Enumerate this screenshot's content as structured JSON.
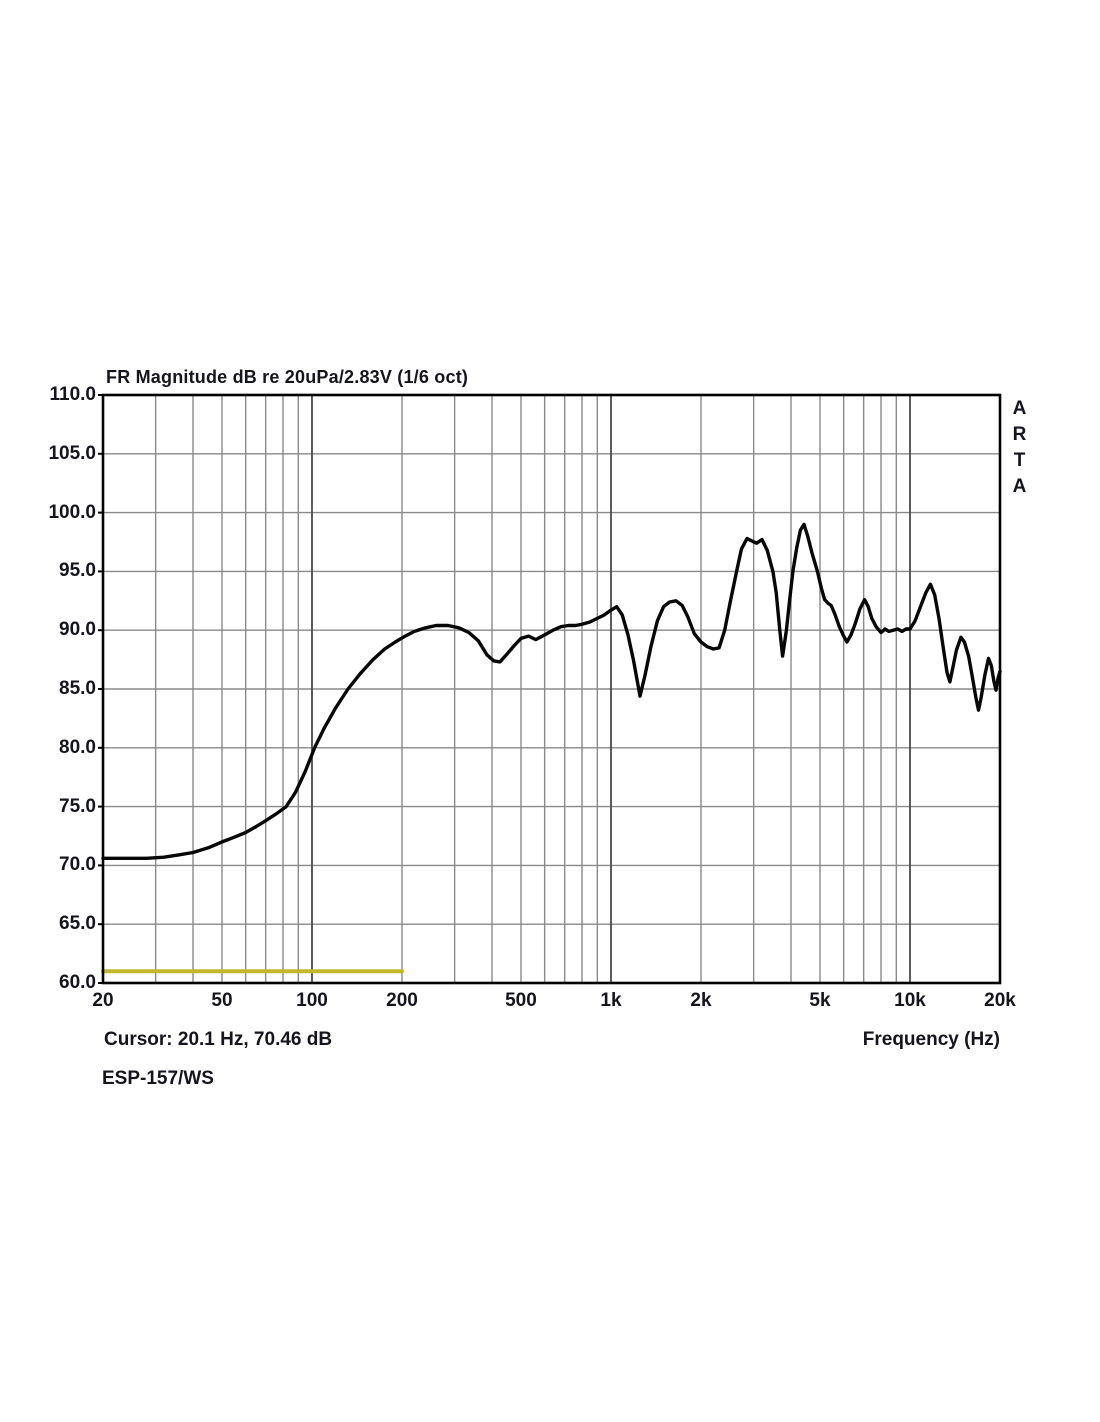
{
  "title": "FR Magnitude dB re 20uPa/2.83V (1/6 oct)",
  "watermark": "ARTA",
  "cursor_readout": "Cursor: 20.1 Hz, 70.46 dB",
  "device_label": "ESP-157/WS",
  "x_axis_label": "Frequency (Hz)",
  "colors": {
    "background": "#ffffff",
    "border": "#000000",
    "grid_minor": "#8a8a8a",
    "grid_decade": "#4a4a4a",
    "text": "#15151e",
    "fr_trace": "#070707",
    "overlay_trace": "#c1b92b"
  },
  "chart_data": {
    "type": "line",
    "title": "FR Magnitude dB re 20uPa/2.83V (1/6 oct)",
    "xlabel": "Frequency (Hz)",
    "ylabel": "",
    "x_scale": "log",
    "xlim": [
      20,
      20000
    ],
    "ylim": [
      60,
      110
    ],
    "grid": true,
    "legend_position": "none",
    "x_ticks": [
      20,
      50,
      100,
      200,
      500,
      1000,
      2000,
      5000,
      10000,
      20000
    ],
    "x_tick_labels": [
      "20",
      "50",
      "100",
      "200",
      "500",
      "1k",
      "2k",
      "5k",
      "10k",
      "20k"
    ],
    "y_ticks": [
      110,
      105,
      100,
      95,
      90,
      85,
      80,
      75,
      70,
      65,
      60
    ],
    "y_tick_labels": [
      "110.0",
      "105.0",
      "100.0",
      "95.0",
      "90.0",
      "85.0",
      "80.0",
      "75.0",
      "70.0",
      "65.0",
      "60.0"
    ],
    "grid_freqs_minor": [
      30,
      40,
      50,
      60,
      70,
      80,
      90,
      200,
      300,
      400,
      500,
      600,
      700,
      800,
      900,
      2000,
      3000,
      4000,
      5000,
      6000,
      7000,
      8000,
      9000
    ],
    "grid_freqs_decade": [
      100,
      1000,
      10000
    ],
    "series": [
      {
        "name": "fr-magnitude",
        "color": "#070707",
        "width": 3.4,
        "points": [
          [
            20,
            70.6
          ],
          [
            22,
            70.6
          ],
          [
            25,
            70.6
          ],
          [
            28,
            70.6
          ],
          [
            32,
            70.7
          ],
          [
            36,
            70.9
          ],
          [
            40,
            71.1
          ],
          [
            45,
            71.5
          ],
          [
            50,
            72.0
          ],
          [
            55,
            72.4
          ],
          [
            60,
            72.8
          ],
          [
            65,
            73.3
          ],
          [
            70,
            73.8
          ],
          [
            76,
            74.4
          ],
          [
            82,
            75.0
          ],
          [
            88,
            76.2
          ],
          [
            95,
            78.0
          ],
          [
            102,
            80.0
          ],
          [
            110,
            81.7
          ],
          [
            120,
            83.4
          ],
          [
            132,
            85.0
          ],
          [
            145,
            86.3
          ],
          [
            160,
            87.5
          ],
          [
            175,
            88.4
          ],
          [
            190,
            89.0
          ],
          [
            205,
            89.5
          ],
          [
            220,
            89.9
          ],
          [
            240,
            90.2
          ],
          [
            260,
            90.4
          ],
          [
            285,
            90.4
          ],
          [
            310,
            90.2
          ],
          [
            335,
            89.8
          ],
          [
            360,
            89.1
          ],
          [
            385,
            87.9
          ],
          [
            405,
            87.4
          ],
          [
            425,
            87.3
          ],
          [
            450,
            88.0
          ],
          [
            475,
            88.7
          ],
          [
            500,
            89.3
          ],
          [
            530,
            89.5
          ],
          [
            560,
            89.2
          ],
          [
            600,
            89.6
          ],
          [
            640,
            90.0
          ],
          [
            680,
            90.3
          ],
          [
            720,
            90.4
          ],
          [
            760,
            90.4
          ],
          [
            800,
            90.5
          ],
          [
            850,
            90.7
          ],
          [
            900,
            91.0
          ],
          [
            950,
            91.3
          ],
          [
            1000,
            91.7
          ],
          [
            1045,
            92.0
          ],
          [
            1090,
            91.3
          ],
          [
            1140,
            89.6
          ],
          [
            1190,
            87.4
          ],
          [
            1250,
            84.4
          ],
          [
            1300,
            86.2
          ],
          [
            1360,
            88.6
          ],
          [
            1430,
            90.8
          ],
          [
            1500,
            92.0
          ],
          [
            1570,
            92.4
          ],
          [
            1650,
            92.5
          ],
          [
            1730,
            92.1
          ],
          [
            1810,
            91.1
          ],
          [
            1900,
            89.7
          ],
          [
            2000,
            89.0
          ],
          [
            2100,
            88.6
          ],
          [
            2200,
            88.4
          ],
          [
            2300,
            88.5
          ],
          [
            2400,
            90.0
          ],
          [
            2500,
            92.3
          ],
          [
            2630,
            95.0
          ],
          [
            2730,
            96.9
          ],
          [
            2850,
            97.8
          ],
          [
            2950,
            97.6
          ],
          [
            3070,
            97.4
          ],
          [
            3200,
            97.7
          ],
          [
            3330,
            96.8
          ],
          [
            3480,
            95.0
          ],
          [
            3570,
            93.2
          ],
          [
            3670,
            90.0
          ],
          [
            3750,
            87.8
          ],
          [
            3860,
            90.0
          ],
          [
            3960,
            92.6
          ],
          [
            4060,
            95.0
          ],
          [
            4180,
            97.0
          ],
          [
            4300,
            98.5
          ],
          [
            4420,
            99.0
          ],
          [
            4550,
            98.0
          ],
          [
            4700,
            96.6
          ],
          [
            4900,
            95.0
          ],
          [
            5050,
            93.6
          ],
          [
            5180,
            92.6
          ],
          [
            5320,
            92.3
          ],
          [
            5450,
            92.1
          ],
          [
            5600,
            91.4
          ],
          [
            5800,
            90.3
          ],
          [
            6000,
            89.5
          ],
          [
            6150,
            89.0
          ],
          [
            6350,
            89.6
          ],
          [
            6550,
            90.5
          ],
          [
            6800,
            91.8
          ],
          [
            7050,
            92.6
          ],
          [
            7250,
            92.0
          ],
          [
            7450,
            91.0
          ],
          [
            7700,
            90.3
          ],
          [
            8000,
            89.8
          ],
          [
            8250,
            90.1
          ],
          [
            8500,
            89.9
          ],
          [
            8800,
            90.0
          ],
          [
            9100,
            90.1
          ],
          [
            9400,
            89.9
          ],
          [
            9700,
            90.1
          ],
          [
            10000,
            90.1
          ],
          [
            10400,
            90.8
          ],
          [
            10800,
            91.9
          ],
          [
            11300,
            93.2
          ],
          [
            11700,
            93.9
          ],
          [
            12100,
            93.0
          ],
          [
            12500,
            91.0
          ],
          [
            12900,
            88.6
          ],
          [
            13300,
            86.4
          ],
          [
            13600,
            85.6
          ],
          [
            13900,
            86.8
          ],
          [
            14300,
            88.3
          ],
          [
            14800,
            89.4
          ],
          [
            15200,
            89.0
          ],
          [
            15700,
            87.8
          ],
          [
            16200,
            85.9
          ],
          [
            16600,
            84.3
          ],
          [
            16950,
            83.2
          ],
          [
            17300,
            84.3
          ],
          [
            17800,
            86.2
          ],
          [
            18300,
            87.6
          ],
          [
            18700,
            87.0
          ],
          [
            19100,
            85.6
          ],
          [
            19400,
            84.9
          ],
          [
            19700,
            85.9
          ],
          [
            20000,
            86.5
          ]
        ]
      },
      {
        "name": "secondary-trace-yellow",
        "color": "#c1b92b",
        "width": 4,
        "points": [
          [
            20,
            61.0
          ],
          [
            200,
            61.0
          ]
        ]
      }
    ]
  }
}
